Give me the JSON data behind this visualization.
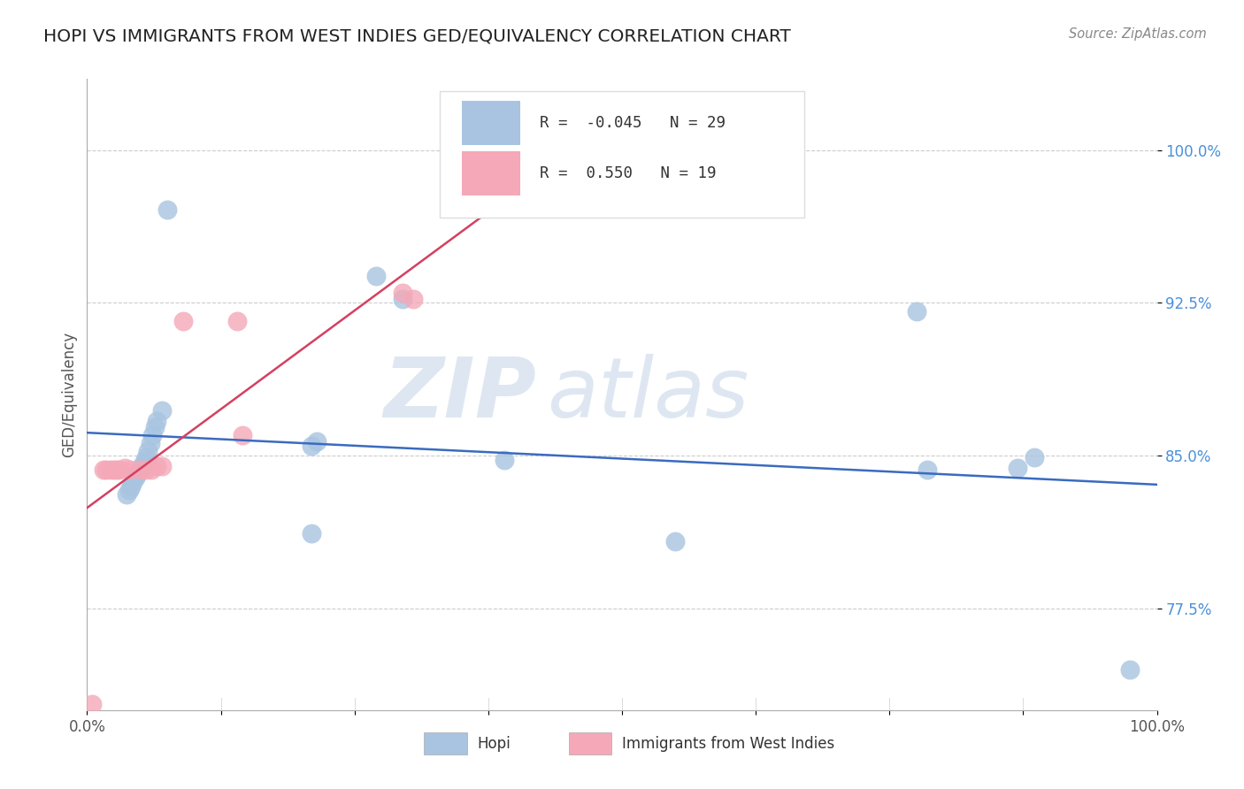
{
  "title": "HOPI VS IMMIGRANTS FROM WEST INDIES GED/EQUIVALENCY CORRELATION CHART",
  "source": "Source: ZipAtlas.com",
  "ylabel": "GED/Equivalency",
  "xlim": [
    0.0,
    1.0
  ],
  "ylim": [
    0.725,
    1.035
  ],
  "yticks": [
    0.775,
    0.85,
    0.925,
    1.0
  ],
  "ytick_labels": [
    "77.5%",
    "85.0%",
    "92.5%",
    "100.0%"
  ],
  "xticks": [
    0.0,
    0.125,
    0.25,
    0.375,
    0.5,
    0.625,
    0.75,
    0.875,
    1.0
  ],
  "xtick_labels": [
    "0.0%",
    "",
    "",
    "",
    "",
    "",
    "",
    "",
    "100.0%"
  ],
  "hopi_R": -0.045,
  "hopi_N": 29,
  "immigrants_R": 0.55,
  "immigrants_N": 19,
  "hopi_color": "#a8c4e0",
  "immigrants_color": "#f4a8b8",
  "hopi_line_color": "#3a6bbf",
  "immigrants_line_color": "#d44060",
  "legend_label_hopi": "Hopi",
  "legend_label_immigrants": "Immigrants from West Indies",
  "watermark_zip": "ZIP",
  "watermark_atlas": "atlas",
  "background_color": "#ffffff",
  "hopi_x": [
    0.075,
    0.27,
    0.295,
    0.07,
    0.065,
    0.063,
    0.061,
    0.059,
    0.057,
    0.055,
    0.053,
    0.051,
    0.049,
    0.047,
    0.045,
    0.043,
    0.041,
    0.039,
    0.037,
    0.21,
    0.215,
    0.21,
    0.39,
    0.55,
    0.775,
    0.785,
    0.87,
    0.885,
    0.975
  ],
  "hopi_y": [
    0.971,
    0.938,
    0.927,
    0.872,
    0.867,
    0.864,
    0.86,
    0.856,
    0.852,
    0.849,
    0.847,
    0.845,
    0.843,
    0.841,
    0.839,
    0.837,
    0.835,
    0.833,
    0.831,
    0.855,
    0.857,
    0.812,
    0.848,
    0.808,
    0.921,
    0.843,
    0.844,
    0.849,
    0.745
  ],
  "immigrants_x": [
    0.005,
    0.015,
    0.018,
    0.022,
    0.025,
    0.028,
    0.03,
    0.035,
    0.04,
    0.05,
    0.055,
    0.06,
    0.065,
    0.07,
    0.09,
    0.14,
    0.145,
    0.295,
    0.305
  ],
  "immigrants_y": [
    0.728,
    0.843,
    0.843,
    0.843,
    0.843,
    0.843,
    0.843,
    0.844,
    0.843,
    0.843,
    0.843,
    0.843,
    0.845,
    0.845,
    0.916,
    0.916,
    0.86,
    0.93,
    0.927
  ]
}
